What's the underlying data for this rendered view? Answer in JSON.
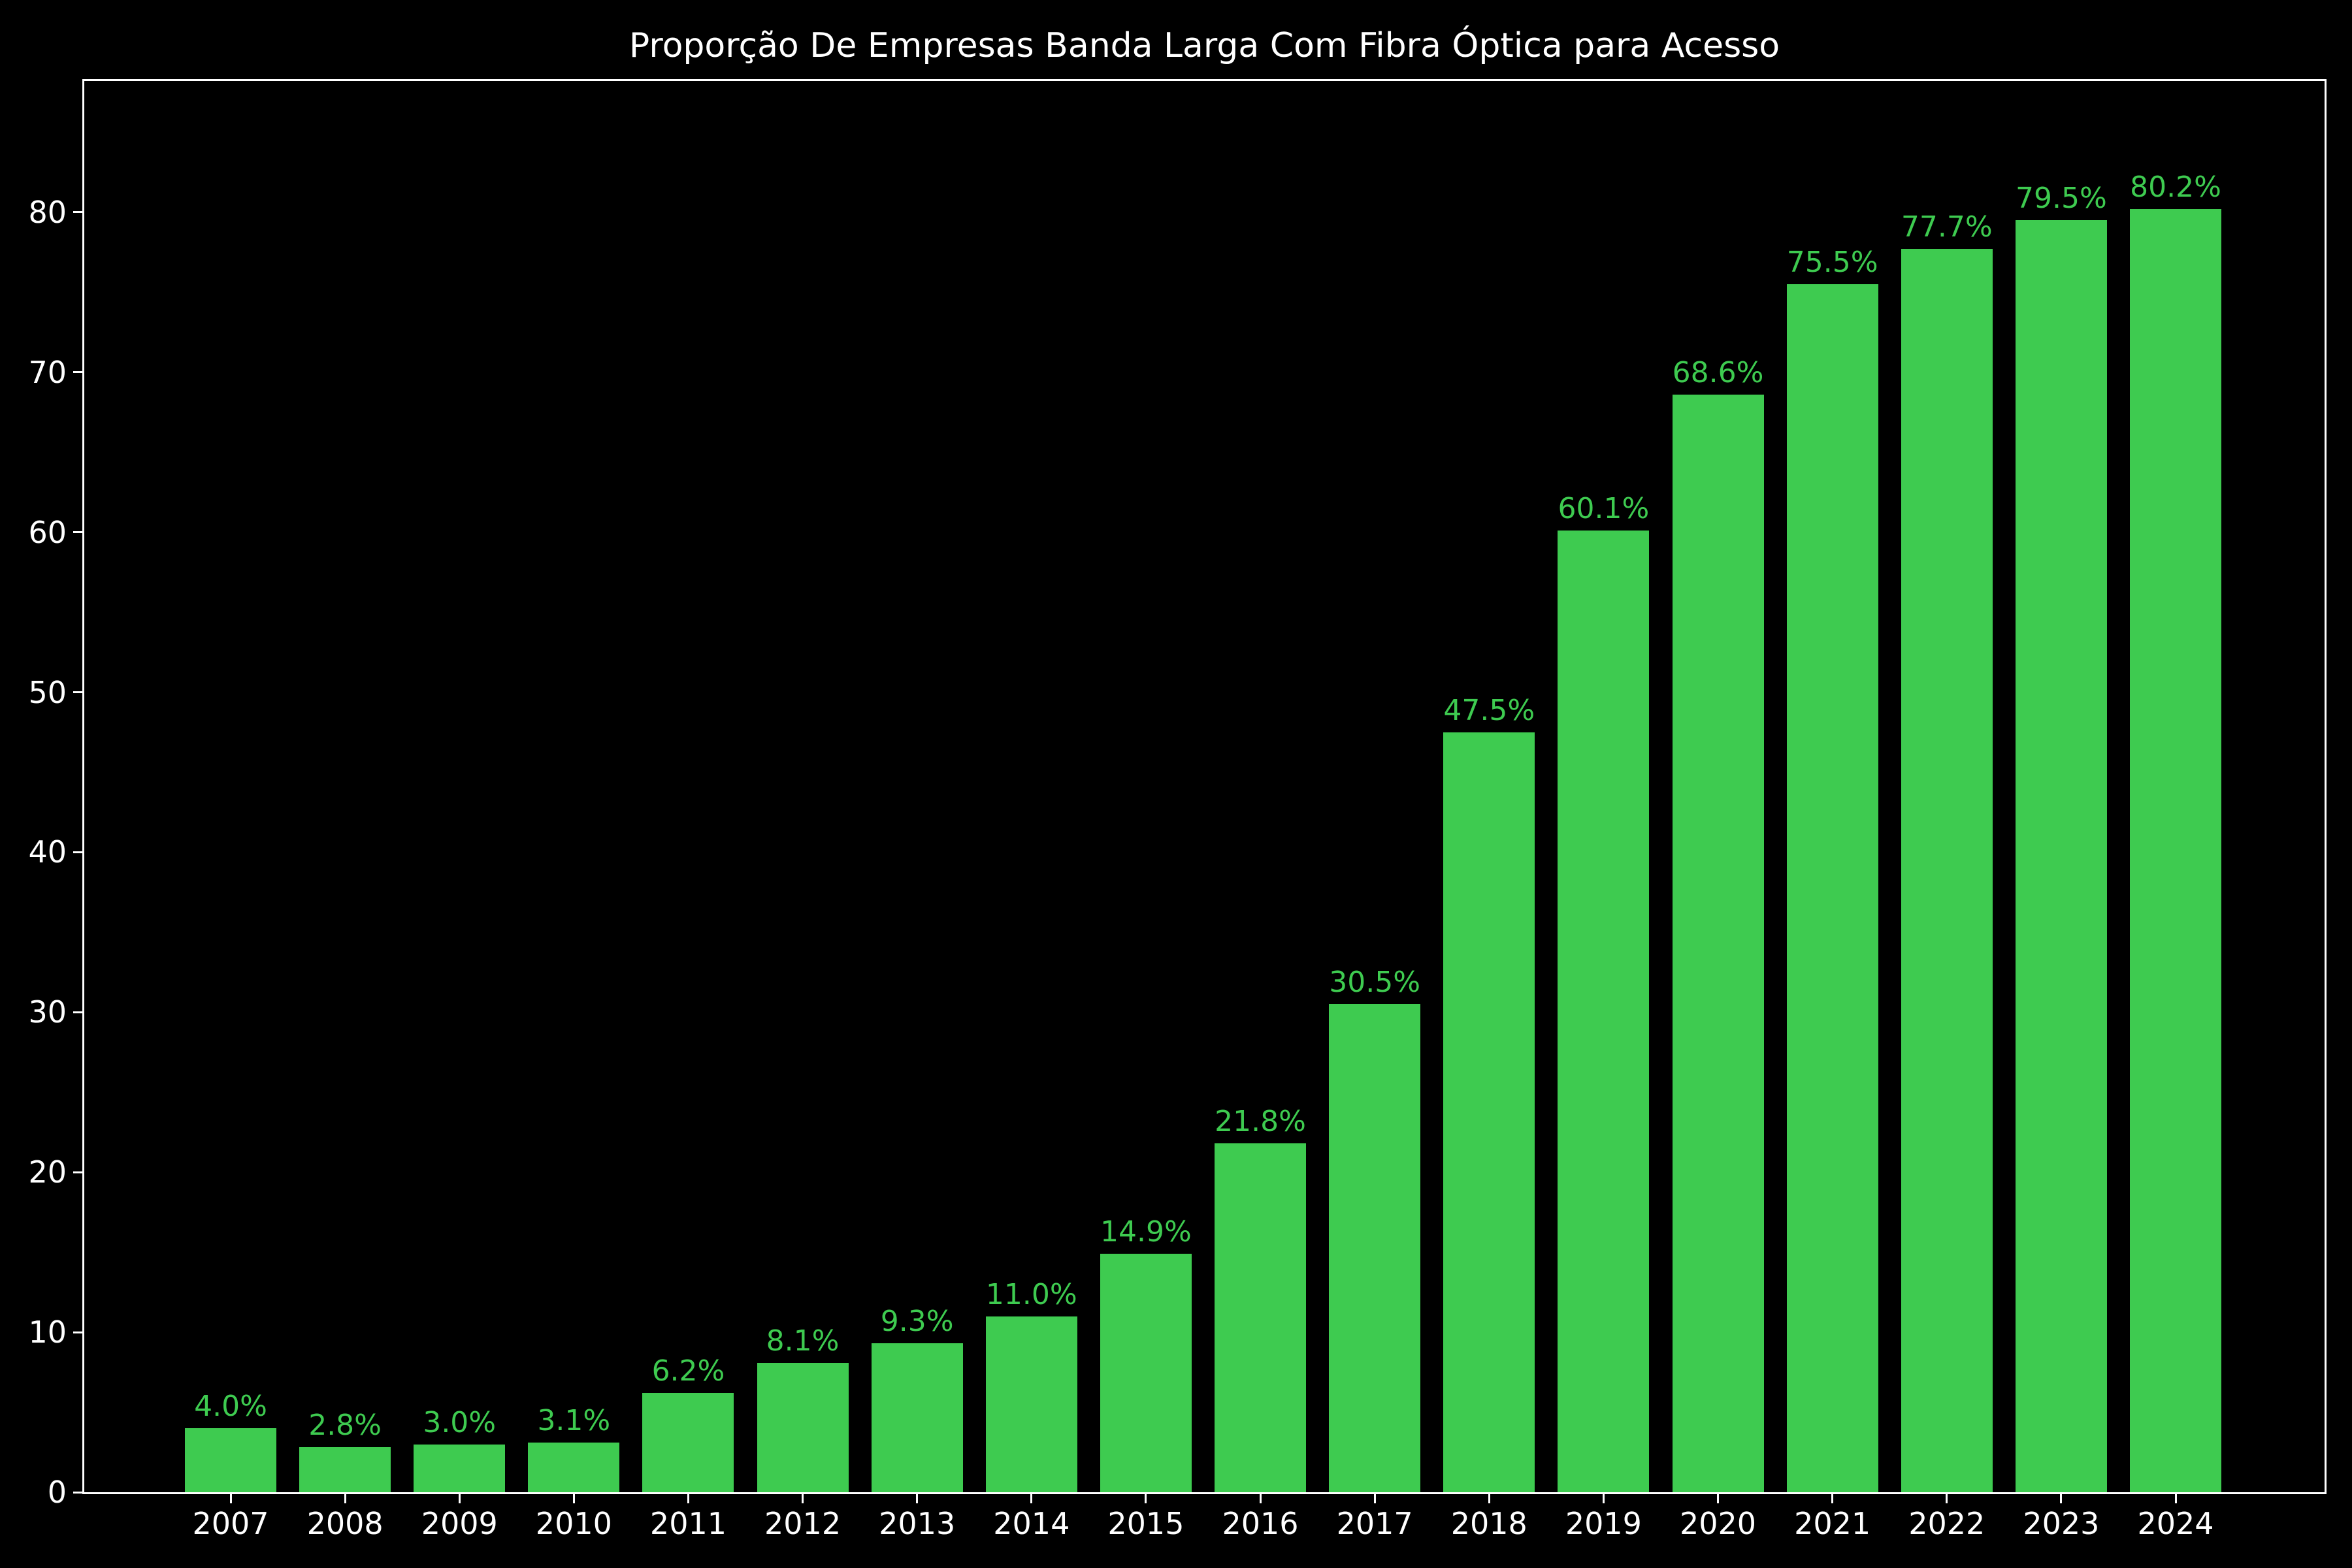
{
  "colors": {
    "background": "#000000",
    "bar": "#3ecb50",
    "bar_label": "#3ecb50",
    "axis": "#ffffff",
    "tick_label": "#ffffff",
    "title": "#ffffff"
  },
  "chart_data": {
    "type": "bar",
    "title": "Proporção De Empresas Banda Larga Com Fibra Óptica para Acesso",
    "categories": [
      "2007",
      "2008",
      "2009",
      "2010",
      "2011",
      "2012",
      "2013",
      "2014",
      "2015",
      "2016",
      "2017",
      "2018",
      "2019",
      "2020",
      "2021",
      "2022",
      "2023",
      "2024"
    ],
    "values": [
      4.0,
      2.8,
      3.0,
      3.1,
      6.2,
      8.1,
      9.3,
      11.0,
      14.9,
      21.8,
      30.5,
      47.5,
      60.1,
      68.6,
      75.5,
      77.7,
      79.5,
      80.2
    ],
    "bar_labels": [
      "4.0%",
      "2.8%",
      "3.0%",
      "3.1%",
      "6.2%",
      "8.1%",
      "9.3%",
      "11.0%",
      "14.9%",
      "21.8%",
      "30.5%",
      "47.5%",
      "60.1%",
      "68.6%",
      "75.5%",
      "77.7%",
      "79.5%",
      "80.2%"
    ],
    "xlabel": "",
    "ylabel": "",
    "yticks": [
      0,
      10,
      20,
      30,
      40,
      50,
      60,
      70,
      80
    ],
    "yticklabels": [
      "0",
      "10",
      "20",
      "30",
      "40",
      "50",
      "60",
      "70",
      "80"
    ],
    "ylim": [
      0,
      88.2
    ],
    "grid": false,
    "legend": false
  }
}
